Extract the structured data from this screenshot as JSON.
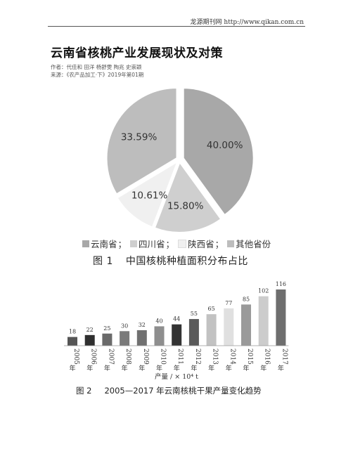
{
  "header": {
    "site_text": "龙源期刊网 http://www.qikan.com.cn"
  },
  "article": {
    "title": "云南省核桃产业发展现状及对策",
    "authors": "作者：代佳和 田洋 杨舒雯 陶兆 史崇颖",
    "source": "来源：《农产品加工·下》2019年第01期"
  },
  "figure1": {
    "number": "图 1",
    "title": "中国核桃种植面积分布占比",
    "legend_sep": "；",
    "chart_data": {
      "type": "pie",
      "slices": [
        {
          "name": "云南省",
          "value": 40.0,
          "label": "40.00%",
          "color": "#a8a8a8"
        },
        {
          "name": "四川省",
          "value": 15.8,
          "label": "15.80%",
          "color": "#cfcfcf"
        },
        {
          "name": "陕西省",
          "value": 10.61,
          "label": "10.61%",
          "color": "#f0f0f0"
        },
        {
          "name": "其他省份",
          "value": 33.59,
          "label": "33.59%",
          "color": "#bdbdbd"
        }
      ]
    }
  },
  "figure2": {
    "number": "图 2",
    "title": "2005—2017 年云南核桃干果产量变化趋势",
    "chart_data": {
      "type": "bar",
      "xlabel": "产量 / × 10⁴ t",
      "categories": [
        "2005年",
        "2006年",
        "2007年",
        "2008年",
        "2009年",
        "2010年",
        "2011年",
        "2012年",
        "2013年",
        "2014年",
        "2015年",
        "2016年",
        "2017年"
      ],
      "values": [
        18,
        22,
        25,
        30,
        32,
        40,
        44,
        55,
        65,
        77,
        85,
        102,
        116
      ],
      "colors": [
        "#555555",
        "#2f2f2f",
        "#6a6a6a",
        "#7a7a7a",
        "#707070",
        "#8e8e8e",
        "#333333",
        "#5a5a5a",
        "#c2c2c2",
        "#e0e0e0",
        "#9a9a9a",
        "#cccccc",
        "#6e6e6e"
      ],
      "ylim": [
        0,
        116
      ]
    }
  }
}
